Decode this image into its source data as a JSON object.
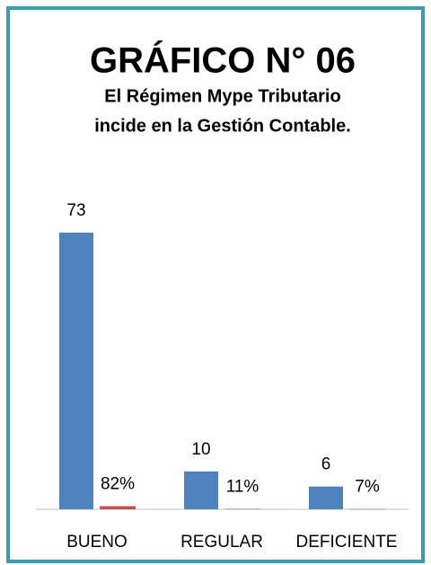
{
  "chart_data": {
    "type": "bar",
    "title": "GRÁFICO N° 06",
    "subtitle": [
      "El Régimen Mype Tributario",
      "incide en la Gestión Contable."
    ],
    "categories": [
      "BUENO",
      "REGULAR",
      "DEFICIENTE"
    ],
    "series": [
      {
        "color": "#4f81bd",
        "values": [
          73,
          10,
          6
        ]
      },
      {
        "color": "#c0504d",
        "values": [
          0.82,
          0.11,
          0.07
        ],
        "value_labels": [
          "82%",
          "11%",
          "7%"
        ]
      }
    ],
    "ylim": [
      0,
      80
    ]
  }
}
